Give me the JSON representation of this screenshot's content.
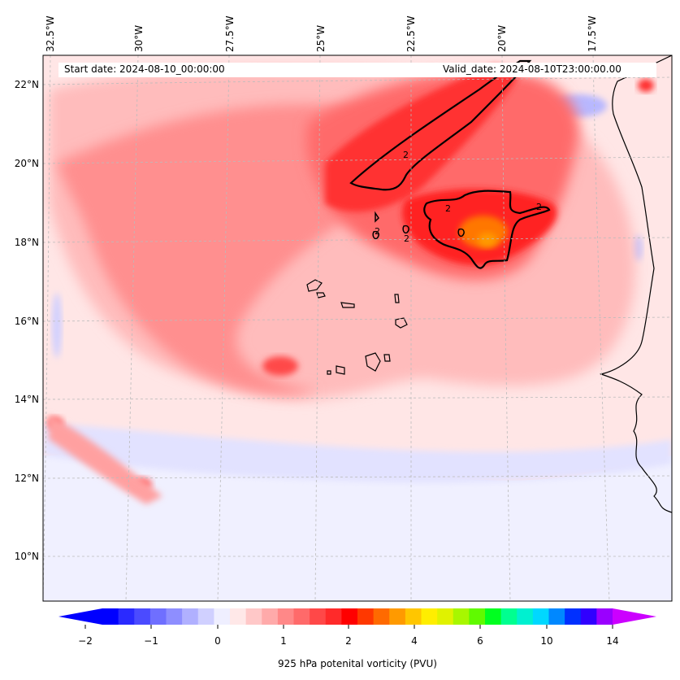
{
  "map": {
    "start_date_text": "Start date: 2024-08-10_00:00:00",
    "valid_date_text": "Valid_date: 2024-08-10T23:00:00.00",
    "longitude_labels": [
      "32.5°W",
      "30°W",
      "27.5°W",
      "25°W",
      "22.5°W",
      "20°W",
      "17.5°W"
    ],
    "latitude_labels": [
      "22°N",
      "20°N",
      "18°N",
      "16°N",
      "14°N",
      "12°N",
      "10°N"
    ],
    "contour_label": "2",
    "field_colors": {
      "light_blue": "#dcdcff",
      "pale_pink": "#ffe6e6",
      "pink": "#ffb3b3",
      "salmon": "#ff7a7a",
      "red": "#ff2a2a",
      "deep_red": "#f20000",
      "orange": "#ff7700"
    }
  },
  "colorbar": {
    "label": "925 hPa potenital vorticity (PVU)",
    "ticks": [
      "−2",
      "−1",
      "0",
      "1",
      "2",
      "4",
      "6",
      "10",
      "14"
    ],
    "colors": [
      "#0000ff",
      "#2a2aff",
      "#4b4bff",
      "#6f6fff",
      "#8e8eff",
      "#b0b0ff",
      "#d0d0ff",
      "#efefff",
      "#ffe8e8",
      "#ffc8c8",
      "#ffaaaa",
      "#ff8888",
      "#ff6a6a",
      "#ff4848",
      "#ff2a2a",
      "#ff0000",
      "#ff3800",
      "#ff6a00",
      "#ff9a00",
      "#ffc600",
      "#ffee00",
      "#e0f200",
      "#a8f700",
      "#60fa00",
      "#00ff20",
      "#00ff90",
      "#00f0d0",
      "#00d8ff",
      "#0088ff",
      "#0030ff",
      "#3000ff",
      "#9a00ff"
    ],
    "min_arrow_color": "#0000ff",
    "max_arrow_color": "#cc00ff"
  }
}
